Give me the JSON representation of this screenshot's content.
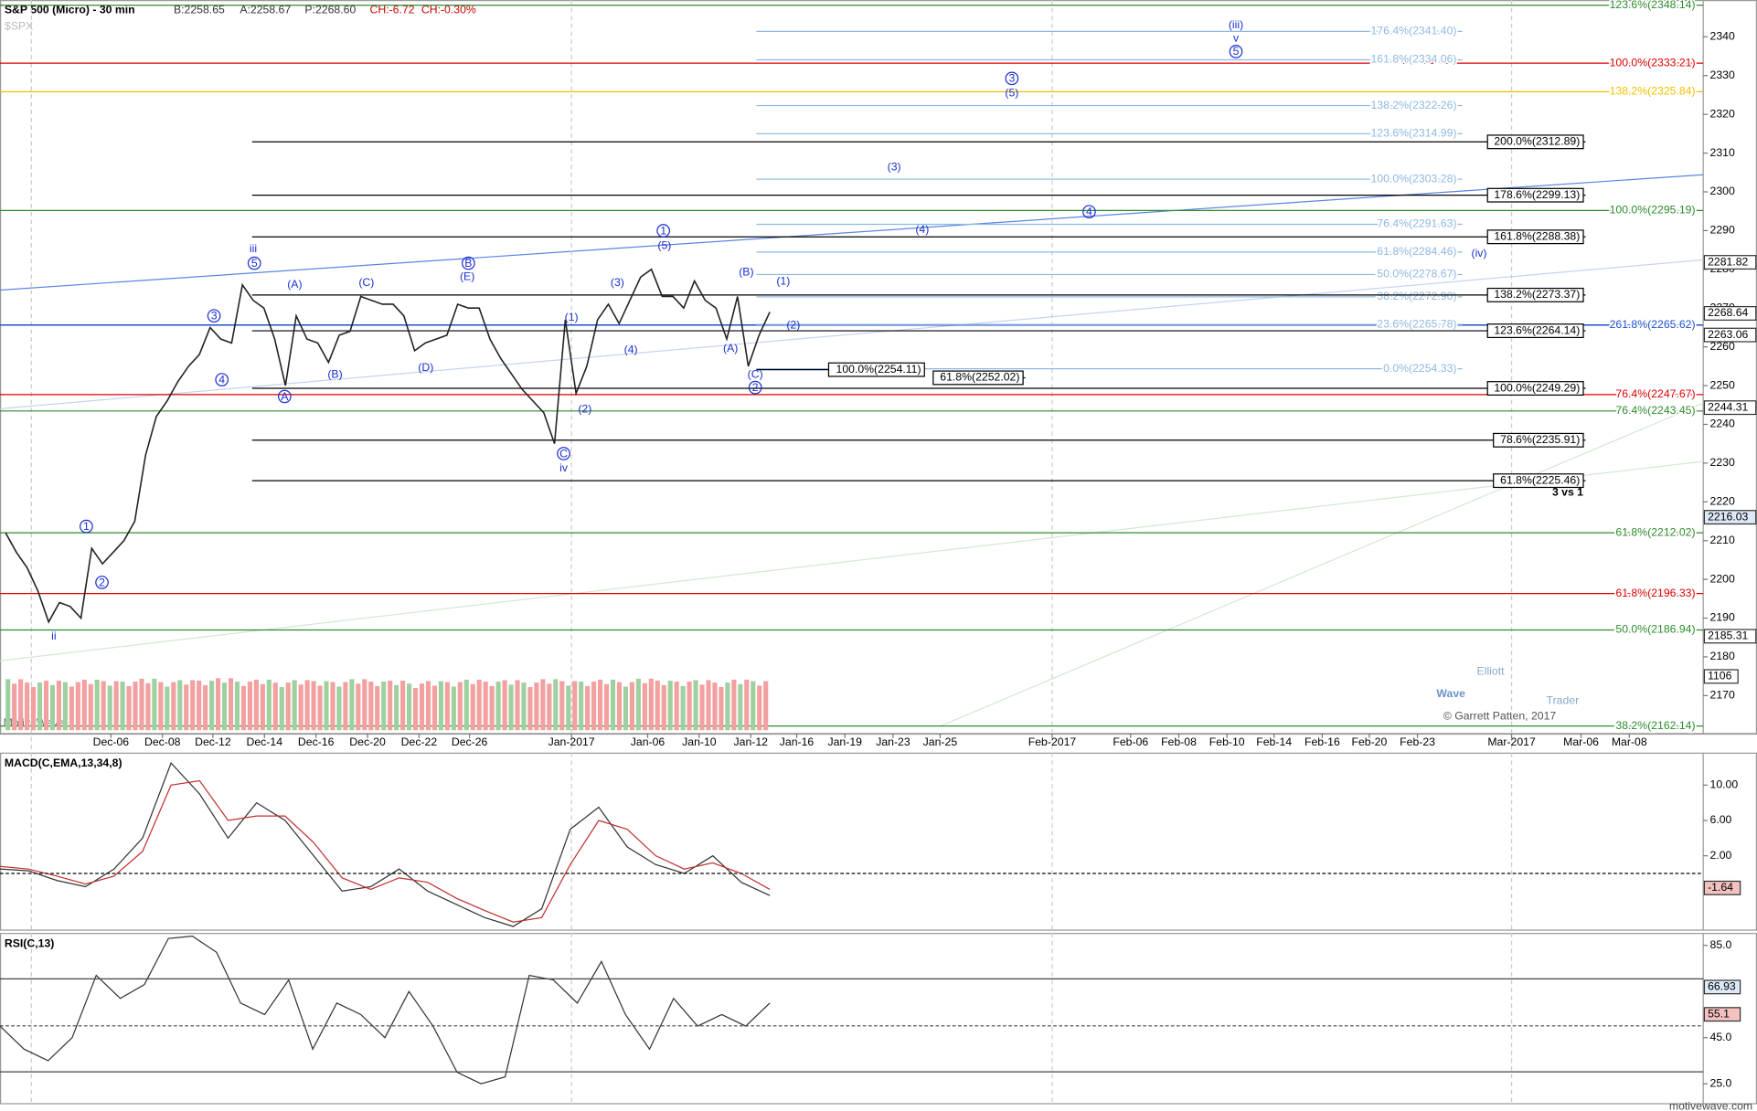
{
  "header": {
    "title": "S&P 500 (Micro) - 30 min",
    "bid": "B:2258.65",
    "ask": "A:2258.67",
    "price": "P:2268.60",
    "change": "CH:-6.72",
    "change_pct": "CH:-0.30%",
    "symbol": "$SPX",
    "vendor": "MotiveWave",
    "footer": "motivewave.com"
  },
  "logo": {
    "line1": "Elliott",
    "line2": "Wave",
    "line3": "Trader",
    "credit": "© Garrett Patten, 2017"
  },
  "chart_data": [
    {
      "type": "line",
      "color": "#222222",
      "values": [
        2212,
        2207,
        2203,
        2197,
        2189,
        2194,
        2193,
        2190,
        2208,
        2204,
        2207,
        2210,
        2215,
        2232,
        2242,
        2246,
        2251,
        2255,
        2258,
        2265,
        2262,
        2261,
        2276,
        2272,
        2270,
        2262,
        2250,
        2268,
        2262,
        2261,
        2256,
        2263,
        2264,
        2273,
        2272,
        2271,
        2271,
        2268,
        2259,
        2261,
        2262,
        2263,
        2271,
        2270,
        2270,
        2262,
        2257,
        2253,
        2249,
        2246,
        2243,
        2235,
        2267,
        2248,
        2255,
        2267,
        2271,
        2266,
        2272,
        2278,
        2280,
        2273,
        2273,
        2270,
        2277,
        2272,
        2270,
        2262,
        2273,
        2255,
        2263,
        2269
      ],
      "ylim": [
        2160.2,
        2349.5
      ],
      "yticks": [
        2340,
        2330,
        2320,
        2310,
        2300,
        2290,
        2280,
        2270,
        2260,
        2250,
        2240,
        2230,
        2220,
        2210,
        2200,
        2190,
        2180,
        2170
      ],
      "x_labels": [
        "Dec-06",
        "Dec-08",
        "Dec-12",
        "Dec-14",
        "Dec-16",
        "Dec-20",
        "Dec-22",
        "Dec-26",
        "Jan-2017",
        "Jan-06",
        "Jan-10",
        "Jan-12",
        "Jan-16",
        "Jan-19",
        "Jan-23",
        "Jan-25",
        "Feb-2017",
        "Feb-06",
        "Feb-08",
        "Feb-10",
        "Feb-14",
        "Feb-16",
        "Feb-20",
        "Feb-23",
        "Mar-2017",
        "Mar-06",
        "Mar-08"
      ],
      "price_tags": [
        {
          "value": 2281.82,
          "label": "2281.82"
        },
        {
          "value": 2268.64,
          "label": "2268.64"
        },
        {
          "value": 2263.06,
          "label": "2263.06"
        },
        {
          "value": 2244.31,
          "label": "2244.31"
        },
        {
          "value": 2216.03,
          "label": "2216.03"
        },
        {
          "value": 2185.31,
          "label": "2185.31"
        }
      ],
      "levels": [
        {
          "color": "#2e8b2e",
          "lines": [
            {
              "value": 2348.14,
              "label": "123.6%(2348.14)"
            },
            {
              "value": 2295.19,
              "label": "100.0%(2295.19)"
            },
            {
              "value": 2243.45,
              "label": "76.4%(2243.45)"
            },
            {
              "value": 2212.02,
              "label": "61.8%(2212.02)"
            },
            {
              "value": 2186.94,
              "label": "50.0%(2186.94)"
            },
            {
              "value": 2162.14,
              "label": "38.2%(2162.14)"
            }
          ]
        },
        {
          "color": "#dd0000",
          "lines": [
            {
              "value": 2333.21,
              "label": "100.0%(2333.21)"
            },
            {
              "value": 2247.67,
              "label": "76.4%(2247.67)"
            },
            {
              "value": 2196.33,
              "label": "61.8%(2196.33)"
            }
          ]
        },
        {
          "color": "#f0c000",
          "lines": [
            {
              "value": 2325.84,
              "label": "138.2%(2325.84)"
            }
          ]
        },
        {
          "color": "#2050d0",
          "lines": [
            {
              "value": 2265.62,
              "label": "261.8%(2265.62)"
            }
          ]
        },
        {
          "color": "#8fb8e2",
          "lines": [
            {
              "value": 2341.4,
              "label": "176.4%(2341.40)"
            },
            {
              "value": 2334.06,
              "label": "161.8%(2334.06)"
            },
            {
              "value": 2322.26,
              "label": "138.2%(2322.26)"
            },
            {
              "value": 2314.99,
              "label": "123.6%(2314.99)"
            },
            {
              "value": 2303.28,
              "label": "100.0%(2303.28)"
            },
            {
              "value": 2291.63,
              "label": "76.4%(2291.63)"
            },
            {
              "value": 2284.46,
              "label": "61.8%(2284.46)"
            },
            {
              "value": 2278.67,
              "label": "50.0%(2278.67)"
            },
            {
              "value": 2272.9,
              "label": "38.2%(2272.90)"
            },
            {
              "value": 2265.78,
              "label": "23.6%(2265.78)"
            },
            {
              "value": 2254.33,
              "label": "0.0%(2254.33)"
            }
          ]
        },
        {
          "color": "#000000",
          "lines": [
            {
              "value": 2312.89,
              "label": "200.0%(2312.89)"
            },
            {
              "value": 2299.13,
              "label": "178.6%(2299.13)"
            },
            {
              "value": 2288.38,
              "label": "161.8%(2288.38)"
            },
            {
              "value": 2273.37,
              "label": "138.2%(2273.37)"
            },
            {
              "value": 2264.14,
              "label": "123.6%(2264.14)"
            },
            {
              "value": 2249.29,
              "label": "100.0%(2249.29)"
            },
            {
              "value": 2235.91,
              "label": "78.6%(2235.91)"
            },
            {
              "value": 2225.46,
              "label": "61.8%(2225.46)"
            }
          ]
        },
        {
          "color": "#000000",
          "lines": [
            {
              "value": 2254.11,
              "label": "100.0%(2254.11)"
            },
            {
              "value": 2252.02,
              "label": "61.8%(2252.02)"
            }
          ]
        }
      ],
      "annotation": "3 vs 1",
      "wave_labels": [
        {
          "label": "iii"
        },
        {
          "label": "5",
          "circled": true
        },
        {
          "label": "3",
          "circled": true
        },
        {
          "label": "4",
          "circled": true
        },
        {
          "label": "1",
          "circled": true
        },
        {
          "label": "2",
          "circled": true
        },
        {
          "label": "ii"
        },
        {
          "label": "(A)"
        },
        {
          "label": "A",
          "circled": true
        },
        {
          "label": "(B)"
        },
        {
          "label": "(C)"
        },
        {
          "label": "(D)"
        },
        {
          "label": "(E)"
        },
        {
          "label": "B",
          "circled": true
        },
        {
          "label": "C",
          "circled": true
        },
        {
          "label": "iv"
        },
        {
          "label": "(1)"
        },
        {
          "label": "(2)"
        },
        {
          "label": "(3)"
        },
        {
          "label": "(4)"
        },
        {
          "label": "(5)"
        },
        {
          "label": "1",
          "circled": true
        },
        {
          "label": "(A)"
        },
        {
          "label": "(B)"
        },
        {
          "label": "(C)"
        },
        {
          "label": "2",
          "circled": true
        },
        {
          "label": "(1)"
        },
        {
          "label": "(2)"
        },
        {
          "label": "(3)"
        },
        {
          "label": "(4)"
        },
        {
          "label": "4",
          "circled": true
        },
        {
          "label": "3",
          "circled": true
        },
        {
          "label": "(5)"
        },
        {
          "label": "(iii)"
        },
        {
          "label": "v"
        },
        {
          "label": "5",
          "circled": true
        },
        {
          "label": "(iv)"
        }
      ],
      "volume": {
        "values": [
          1050,
          980,
          1020,
          990,
          1040,
          1010,
          1000,
          1060,
          990,
          1030,
          1020,
          1070,
          1000,
          1040,
          980,
          1030,
          1010,
          990,
          1050,
          1000,
          1020,
          960,
          1010,
          990,
          1040,
          1000,
          1030,
          980,
          1050,
          1010,
          1000,
          1040,
          990,
          1060,
          1020,
          1000,
          1030,
          980,
          1040,
          1010
        ],
        "ylim": [
          0,
          1590
        ],
        "tag": {
          "value": 1106,
          "label": "1106"
        }
      }
    },
    {
      "type": "line",
      "title": "MACD(C,EMA,13,34,8)",
      "ylim": [
        -6.35,
        13.68
      ],
      "yticks": [
        {
          "value": 10,
          "label": "10.00"
        },
        {
          "value": 6,
          "label": "6.00"
        },
        {
          "value": 2,
          "label": "2.00"
        }
      ],
      "tag": {
        "value": -1.64,
        "label": "-1.64"
      },
      "series": [
        {
          "color": "#333333",
          "values": [
            0.5,
            0.3,
            -0.8,
            -1.5,
            0.5,
            4,
            12.5,
            9,
            4,
            8,
            6,
            2,
            -2,
            -1.5,
            0.5,
            -2,
            -3.5,
            -5,
            -6,
            -4,
            5,
            7.5,
            3,
            1,
            0,
            2,
            -1,
            -2.5
          ]
        },
        {
          "color": "#c03030",
          "values": [
            0.8,
            0.5,
            -0.3,
            -1.2,
            -0.3,
            2.5,
            10,
            10.5,
            6,
            6.5,
            6.5,
            3.5,
            -0.5,
            -1.8,
            -0.5,
            -1,
            -2.8,
            -4.2,
            -5.5,
            -5,
            1,
            6,
            5,
            2,
            0.5,
            1.2,
            0,
            -1.8
          ]
        }
      ]
    },
    {
      "type": "line",
      "title": "RSI(C,13)",
      "ylim": [
        16.6,
        90.4
      ],
      "yticks": [
        {
          "value": 85,
          "label": "85.0"
        },
        {
          "value": 45,
          "label": "45.0"
        },
        {
          "value": 25,
          "label": "25.0"
        }
      ],
      "tags": [
        {
          "value": 66.93,
          "label": "66.93"
        },
        {
          "value": 55.1,
          "label": "55.1"
        }
      ],
      "series": [
        {
          "color": "#333333",
          "values": [
            50,
            40,
            35,
            45,
            72,
            62,
            68,
            88,
            89,
            82,
            60,
            55,
            70,
            40,
            60,
            55,
            45,
            65,
            50,
            30,
            25,
            28,
            72,
            70,
            60,
            78,
            55,
            40,
            62,
            50,
            55,
            50,
            60
          ]
        }
      ]
    }
  ]
}
